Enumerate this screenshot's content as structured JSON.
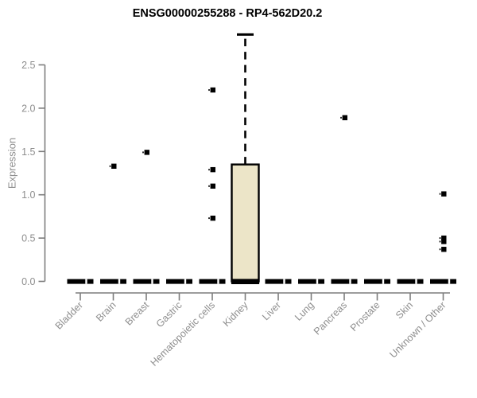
{
  "header": {
    "title": "ENSG00000255288 - RP4-562D20.2"
  },
  "chart_data": {
    "type": "box",
    "title": "ENSG00000255288 - RP4-562D20.2",
    "xlabel": "",
    "ylabel": "Expression",
    "ylim": [
      0,
      2.9
    ],
    "yticks": [
      "0.0",
      "0.5",
      "1.0",
      "1.5",
      "2.0",
      "2.5"
    ],
    "grid": false,
    "legend": false,
    "colors": {
      "box_fill": "#ece5c8",
      "box_border": "#000000",
      "axis_line": "#7d7d7d",
      "tick_text": "#8e8e8e",
      "title_text": "#000000",
      "background": "#ffffff"
    },
    "categories": [
      "Bladder",
      "Brain",
      "Breast",
      "Gastric",
      "Hematopoietic cells",
      "Kidney",
      "Liver",
      "Lung",
      "Pancreas",
      "Prostate",
      "Skin",
      "Unknown / Other"
    ],
    "boxes": [
      {
        "category": "Bladder",
        "whisker_low": 0,
        "q1": 0,
        "median": 0,
        "q3": 0,
        "whisker_high": 0,
        "outliers": []
      },
      {
        "category": "Brain",
        "whisker_low": 0,
        "q1": 0,
        "median": 0,
        "q3": 0,
        "whisker_high": 0,
        "outliers": [
          1.33
        ]
      },
      {
        "category": "Breast",
        "whisker_low": 0,
        "q1": 0,
        "median": 0,
        "q3": 0,
        "whisker_high": 0,
        "outliers": [
          1.49
        ]
      },
      {
        "category": "Gastric",
        "whisker_low": 0,
        "q1": 0,
        "median": 0,
        "q3": 0,
        "whisker_high": 0,
        "outliers": []
      },
      {
        "category": "Hematopoietic cells",
        "whisker_low": 0,
        "q1": 0,
        "median": 0,
        "q3": 0,
        "whisker_high": 0,
        "outliers": [
          2.21,
          1.29,
          1.1,
          0.73
        ]
      },
      {
        "category": "Kidney",
        "whisker_low": 0,
        "q1": 0,
        "median": 0,
        "q3": 1.35,
        "whisker_high": 2.85,
        "outliers": []
      },
      {
        "category": "Liver",
        "whisker_low": 0,
        "q1": 0,
        "median": 0,
        "q3": 0,
        "whisker_high": 0,
        "outliers": []
      },
      {
        "category": "Lung",
        "whisker_low": 0,
        "q1": 0,
        "median": 0,
        "q3": 0,
        "whisker_high": 0,
        "outliers": []
      },
      {
        "category": "Pancreas",
        "whisker_low": 0,
        "q1": 0,
        "median": 0,
        "q3": 0,
        "whisker_high": 0,
        "outliers": [
          1.89
        ]
      },
      {
        "category": "Prostate",
        "whisker_low": 0,
        "q1": 0,
        "median": 0,
        "q3": 0,
        "whisker_high": 0,
        "outliers": []
      },
      {
        "category": "Skin",
        "whisker_low": 0,
        "q1": 0,
        "median": 0,
        "q3": 0,
        "whisker_high": 0,
        "outliers": []
      },
      {
        "category": "Unknown / Other",
        "whisker_low": 0,
        "q1": 0,
        "median": 0,
        "q3": 0,
        "whisker_high": 0,
        "outliers": [
          1.01,
          0.5,
          0.46,
          0.37
        ]
      }
    ]
  }
}
